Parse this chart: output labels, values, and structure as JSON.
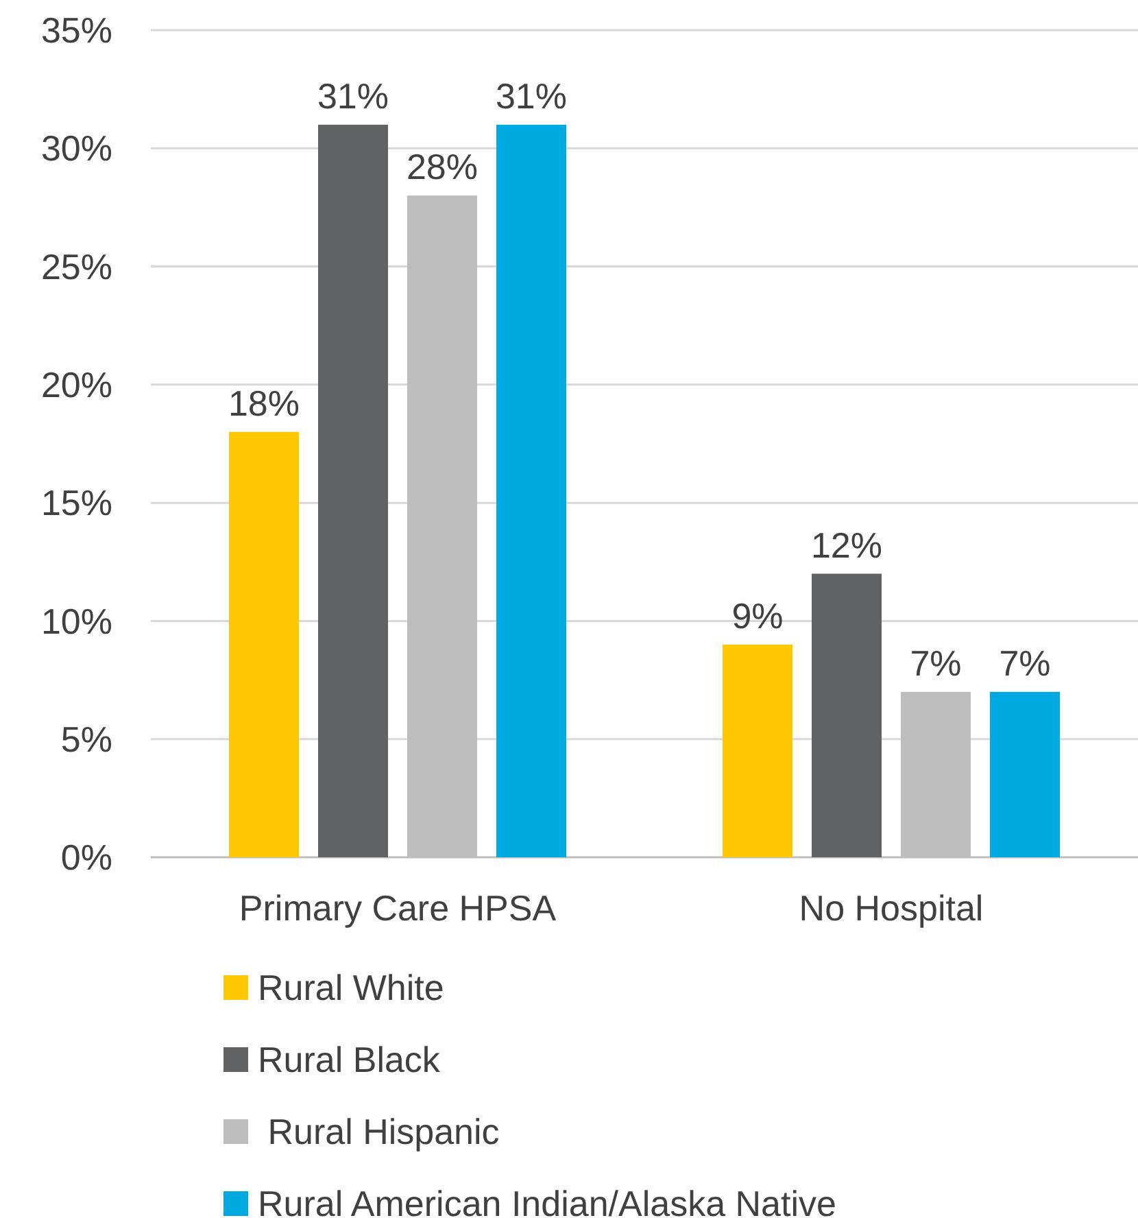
{
  "chart_data": {
    "type": "bar",
    "categories": [
      "Primary Care HPSA",
      "No Hospital"
    ],
    "series": [
      {
        "name": "Rural White",
        "color": "#ffc800",
        "values": [
          18,
          9
        ],
        "value_labels": [
          "18%",
          "9%"
        ]
      },
      {
        "name": "Rural Black",
        "color": "#5f6366",
        "values": [
          31,
          12
        ],
        "value_labels": [
          "31%",
          "12%"
        ]
      },
      {
        "name": " Rural Hispanic",
        "color": "#bdbdbd",
        "values": [
          28,
          7
        ],
        "value_labels": [
          "28%",
          "7%"
        ]
      },
      {
        "name": "Rural American Indian/Alaska Native",
        "color": "#00a9e0",
        "values": [
          31,
          7
        ],
        "value_labels": [
          "31%",
          "7%"
        ]
      }
    ],
    "ylim": [
      0,
      35
    ],
    "yticks": [
      {
        "value": 0,
        "label": "0%"
      },
      {
        "value": 5,
        "label": "5%"
      },
      {
        "value": 10,
        "label": "10%"
      },
      {
        "value": 15,
        "label": "15%"
      },
      {
        "value": 20,
        "label": "20%"
      },
      {
        "value": 25,
        "label": "25%"
      },
      {
        "value": 30,
        "label": "30%"
      },
      {
        "value": 35,
        "label": "35%"
      }
    ],
    "grid": "y",
    "legend": "bottom"
  }
}
